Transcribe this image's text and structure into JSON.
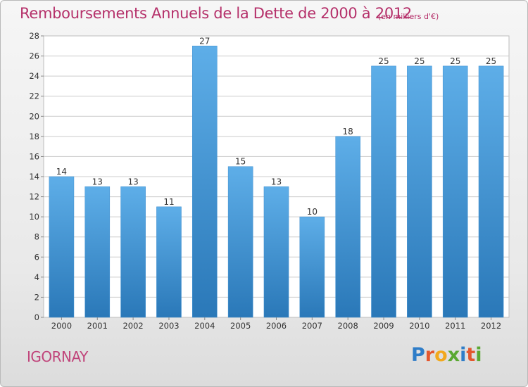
{
  "title": "Remboursements Annuels de la Dette de 2000 à 2012",
  "subtitle": "(en milliers d'€)",
  "place": "IGORNAY",
  "logo": {
    "text": "Proxiti"
  },
  "colors": {
    "title": "#b5306a",
    "bar_top": "#5eaee8",
    "bar_bottom": "#2a78b8",
    "grid": "#cccccc"
  },
  "chart_data": {
    "type": "bar",
    "categories": [
      "2000",
      "2001",
      "2002",
      "2003",
      "2004",
      "2005",
      "2006",
      "2007",
      "2008",
      "2009",
      "2010",
      "2011",
      "2012"
    ],
    "values": [
      14,
      13,
      13,
      11,
      27,
      15,
      13,
      10,
      18,
      25,
      25,
      25,
      25
    ],
    "title": "Remboursements Annuels de la Dette de 2000 à 2012",
    "xlabel": "",
    "ylabel": "",
    "ylim": [
      0,
      28
    ],
    "yticks": [
      0,
      2,
      4,
      6,
      8,
      10,
      12,
      14,
      16,
      18,
      20,
      22,
      24,
      26,
      28
    ],
    "grid": true,
    "data_labels": true
  }
}
